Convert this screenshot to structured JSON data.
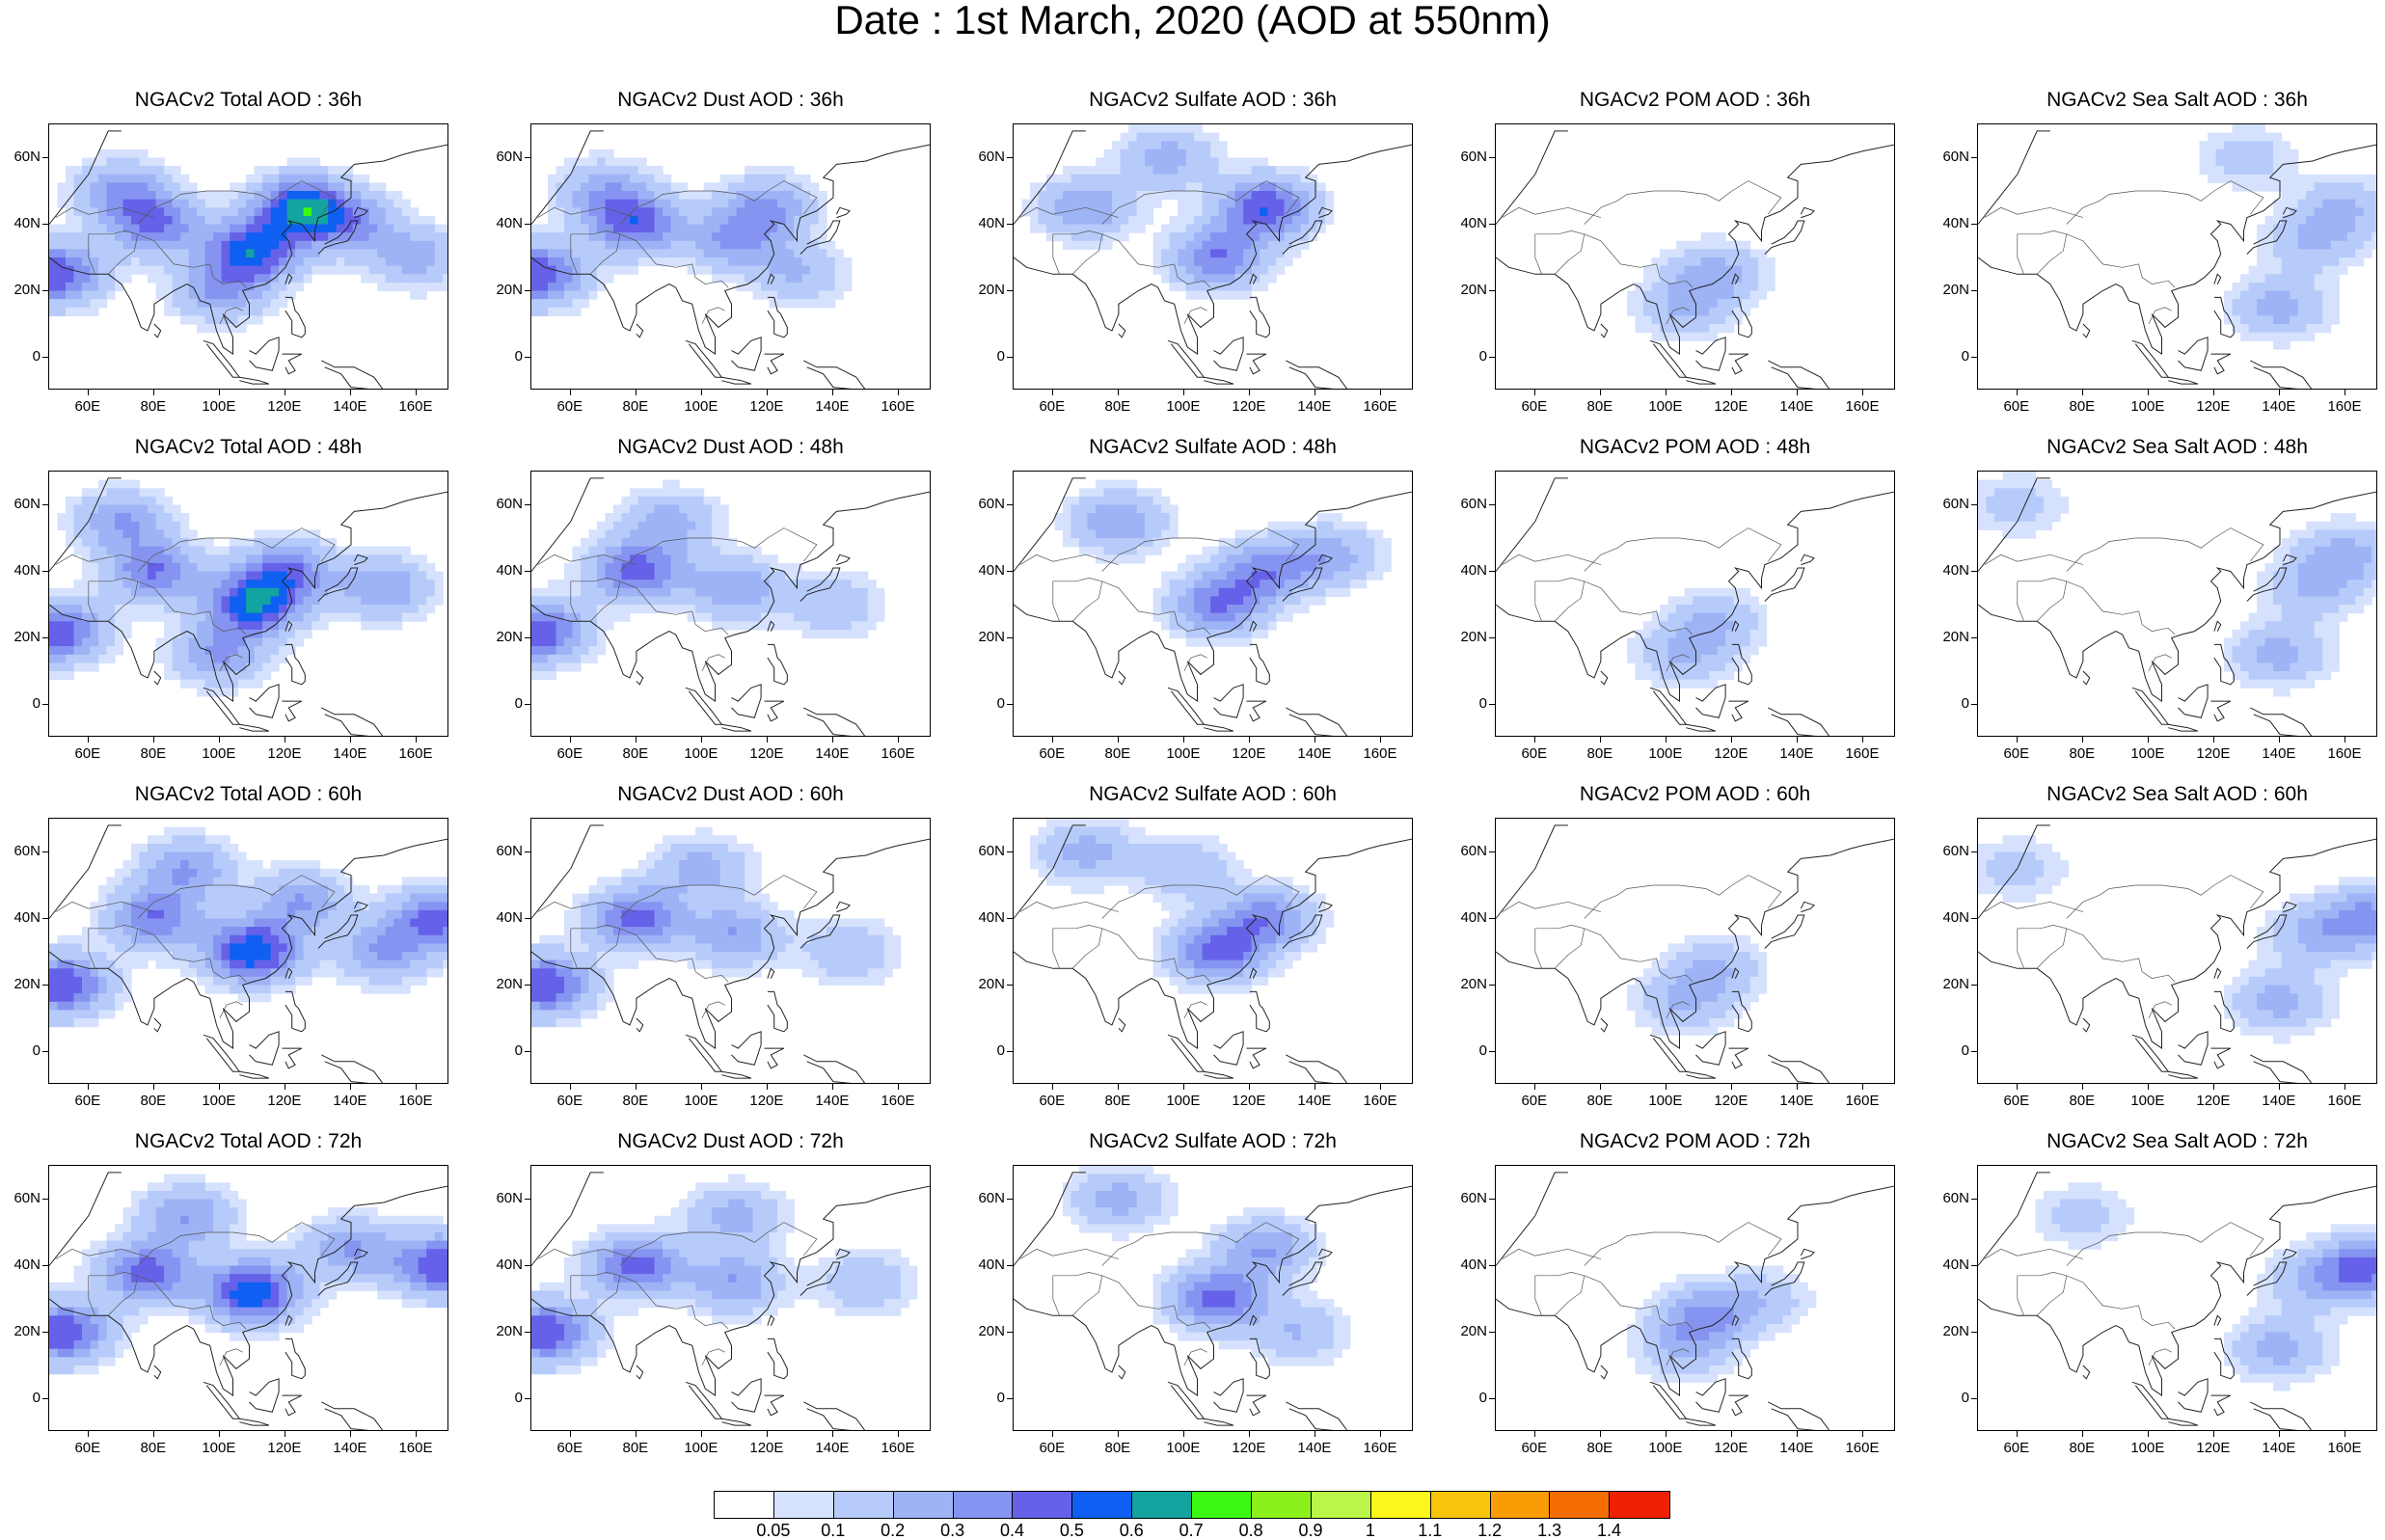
{
  "title": "Date : 1st March, 2020 (AOD at 550nm)",
  "panels": [
    {
      "title": "NGACv2 Total AOD : 36h",
      "species": "total",
      "step": 0
    },
    {
      "title": "NGACv2 Dust AOD : 36h",
      "species": "dust",
      "step": 0
    },
    {
      "title": "NGACv2 Sulfate AOD : 36h",
      "species": "sulfate",
      "step": 0
    },
    {
      "title": "NGACv2 POM AOD : 36h",
      "species": "pom",
      "step": 0
    },
    {
      "title": "NGACv2 Sea Salt AOD : 36h",
      "species": "seasalt",
      "step": 0
    },
    {
      "title": "NGACv2 Total AOD : 48h",
      "species": "total",
      "step": 1
    },
    {
      "title": "NGACv2 Dust AOD : 48h",
      "species": "dust",
      "step": 1
    },
    {
      "title": "NGACv2 Sulfate AOD : 48h",
      "species": "sulfate",
      "step": 1
    },
    {
      "title": "NGACv2 POM AOD : 48h",
      "species": "pom",
      "step": 1
    },
    {
      "title": "NGACv2 Sea Salt AOD : 48h",
      "species": "seasalt",
      "step": 1
    },
    {
      "title": "NGACv2 Total AOD : 60h",
      "species": "total",
      "step": 2
    },
    {
      "title": "NGACv2 Dust AOD : 60h",
      "species": "dust",
      "step": 2
    },
    {
      "title": "NGACv2 Sulfate AOD : 60h",
      "species": "sulfate",
      "step": 2
    },
    {
      "title": "NGACv2 POM AOD : 60h",
      "species": "pom",
      "step": 2
    },
    {
      "title": "NGACv2 Sea Salt AOD : 60h",
      "species": "seasalt",
      "step": 2
    },
    {
      "title": "NGACv2 Total AOD : 72h",
      "species": "total",
      "step": 3
    },
    {
      "title": "NGACv2 Dust AOD : 72h",
      "species": "dust",
      "step": 3
    },
    {
      "title": "NGACv2 Sulfate AOD : 72h",
      "species": "sulfate",
      "step": 3
    },
    {
      "title": "NGACv2 POM AOD : 72h",
      "species": "pom",
      "step": 3
    },
    {
      "title": "NGACv2 Sea Salt  AOD : 72h",
      "species": "seasalt",
      "step": 3
    }
  ],
  "chart_data": {
    "type": "heatmap",
    "map_extent": {
      "lon": [
        48,
        170
      ],
      "lat": [
        -10,
        70
      ]
    },
    "x_ticks": {
      "values": [
        60,
        80,
        100,
        120,
        140,
        160
      ],
      "labels": [
        "60E",
        "80E",
        "100E",
        "120E",
        "140E",
        "160E"
      ]
    },
    "y_ticks": {
      "values": [
        0,
        20,
        40,
        60
      ],
      "labels": [
        "0",
        "20N",
        "40N",
        "60N"
      ]
    },
    "colorbar": {
      "levels": [
        "0.05",
        "0.1",
        "0.2",
        "0.3",
        "0.4",
        "0.5",
        "0.6",
        "0.7",
        "0.8",
        "0.9",
        "1",
        "1.1",
        "1.2",
        "1.3",
        "1.4"
      ],
      "colors": [
        "#ffffff",
        "#d5e1fd",
        "#b6cbfa",
        "#9db3f5",
        "#8594f1",
        "#6661e9",
        "#0f60f2",
        "#13a3a1",
        "#3dfa12",
        "#8bf01c",
        "#bcf549",
        "#fbf71a",
        "#f8c50a",
        "#fa9c05",
        "#f36d03",
        "#ee2002"
      ]
    },
    "aod_field_anchors": {
      "total": [
        [
          [
            50,
            25,
            0.5
          ],
          [
            110,
            32,
            0.55
          ],
          [
            125,
            45,
            0.6
          ],
          [
            80,
            40,
            0.4
          ],
          [
            70,
            50,
            0.3
          ],
          [
            100,
            20,
            0.3
          ],
          [
            140,
            40,
            0.3
          ],
          [
            160,
            30,
            0.25
          ]
        ],
        [
          [
            50,
            22,
            0.5
          ],
          [
            110,
            30,
            0.55
          ],
          [
            120,
            40,
            0.4
          ],
          [
            80,
            40,
            0.4
          ],
          [
            70,
            55,
            0.3
          ],
          [
            100,
            15,
            0.3
          ],
          [
            150,
            35,
            0.3
          ]
        ],
        [
          [
            52,
            20,
            0.5
          ],
          [
            110,
            30,
            0.6
          ],
          [
            125,
            45,
            0.3
          ],
          [
            80,
            40,
            0.4
          ],
          [
            90,
            55,
            0.3
          ],
          [
            167,
            40,
            0.45
          ],
          [
            150,
            30,
            0.3
          ]
        ],
        [
          [
            52,
            20,
            0.5
          ],
          [
            110,
            32,
            0.6
          ],
          [
            78,
            38,
            0.45
          ],
          [
            90,
            55,
            0.3
          ],
          [
            167,
            40,
            0.5
          ],
          [
            140,
            45,
            0.3
          ]
        ]
      ],
      "dust": [
        [
          [
            50,
            25,
            0.5
          ],
          [
            80,
            40,
            0.45
          ],
          [
            110,
            35,
            0.3
          ],
          [
            120,
            45,
            0.3
          ],
          [
            70,
            50,
            0.25
          ],
          [
            130,
            25,
            0.2
          ]
        ],
        [
          [
            50,
            22,
            0.5
          ],
          [
            80,
            40,
            0.45
          ],
          [
            110,
            35,
            0.3
          ],
          [
            90,
            55,
            0.25
          ],
          [
            140,
            30,
            0.2
          ]
        ],
        [
          [
            52,
            20,
            0.5
          ],
          [
            80,
            40,
            0.45
          ],
          [
            110,
            35,
            0.3
          ],
          [
            100,
            55,
            0.25
          ],
          [
            145,
            30,
            0.2
          ]
        ],
        [
          [
            52,
            20,
            0.5
          ],
          [
            80,
            40,
            0.45
          ],
          [
            110,
            35,
            0.3
          ],
          [
            110,
            55,
            0.25
          ],
          [
            150,
            35,
            0.2
          ]
        ]
      ],
      "sulfate": [
        [
          [
            110,
            30,
            0.4
          ],
          [
            125,
            45,
            0.5
          ],
          [
            70,
            45,
            0.3
          ],
          [
            95,
            60,
            0.25
          ]
        ],
        [
          [
            110,
            30,
            0.4
          ],
          [
            125,
            40,
            0.35
          ],
          [
            80,
            55,
            0.3
          ],
          [
            145,
            45,
            0.25
          ]
        ],
        [
          [
            110,
            30,
            0.45
          ],
          [
            125,
            40,
            0.35
          ],
          [
            70,
            60,
            0.25
          ],
          [
            100,
            55,
            0.2
          ]
        ],
        [
          [
            110,
            30,
            0.45
          ],
          [
            125,
            45,
            0.3
          ],
          [
            80,
            60,
            0.25
          ],
          [
            135,
            20,
            0.2
          ]
        ]
      ],
      "pom": [
        [
          [
            115,
            25,
            0.25
          ],
          [
            105,
            15,
            0.2
          ]
        ],
        [
          [
            115,
            25,
            0.2
          ],
          [
            105,
            15,
            0.2
          ]
        ],
        [
          [
            115,
            25,
            0.2
          ],
          [
            105,
            15,
            0.2
          ]
        ],
        [
          [
            112,
            25,
            0.3
          ],
          [
            105,
            15,
            0.2
          ],
          [
            130,
            30,
            0.15
          ]
        ]
      ],
      "seasalt": [
        [
          [
            140,
            15,
            0.25
          ],
          [
            150,
            35,
            0.2
          ],
          [
            130,
            60,
            0.15
          ],
          [
            160,
            45,
            0.2
          ]
        ],
        [
          [
            140,
            15,
            0.25
          ],
          [
            150,
            35,
            0.2
          ],
          [
            160,
            45,
            0.25
          ],
          [
            60,
            60,
            0.15
          ]
        ],
        [
          [
            140,
            15,
            0.25
          ],
          [
            150,
            35,
            0.2
          ],
          [
            167,
            40,
            0.35
          ],
          [
            60,
            55,
            0.15
          ]
        ],
        [
          [
            140,
            15,
            0.25
          ],
          [
            150,
            35,
            0.2
          ],
          [
            167,
            40,
            0.45
          ],
          [
            80,
            55,
            0.15
          ]
        ]
      ]
    }
  }
}
